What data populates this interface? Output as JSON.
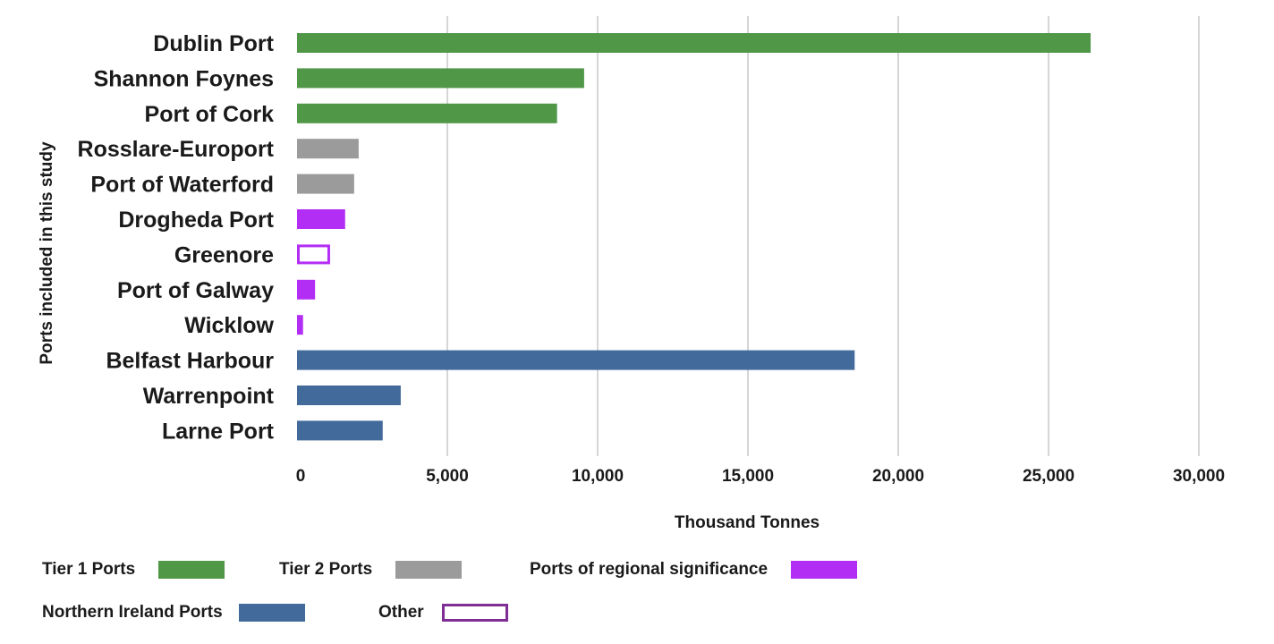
{
  "chart_data": {
    "type": "bar",
    "orientation": "horizontal",
    "xlabel": "Thousand Tonnes",
    "ylabel": "Ports included in this study",
    "xlim": [
      0,
      30000
    ],
    "x_ticks": [
      0,
      5000,
      10000,
      15000,
      20000,
      25000,
      30000
    ],
    "x_tick_labels": [
      "0",
      "5,000",
      "10,000",
      "15,000",
      "20,000",
      "25,000",
      "30,000"
    ],
    "grid": "vertical",
    "legend_position": "bottom",
    "categories": [
      "Dublin Port",
      "Shannon Foynes",
      "Port of Cork",
      "Rosslare-Europort",
      "Port of Waterford",
      "Drogheda Port",
      "Greenore",
      "Port of Galway",
      "Wicklow",
      "Belfast Harbour",
      "Warrenpoint",
      "Larne Port"
    ],
    "values": [
      26400,
      9550,
      8650,
      2050,
      1900,
      1600,
      1100,
      600,
      200,
      18550,
      3450,
      2850
    ],
    "groups": [
      "Tier 1 Ports",
      "Tier 1 Ports",
      "Tier 1 Ports",
      "Tier 2 Ports",
      "Tier 2 Ports",
      "Ports of regional significance",
      "Other",
      "Ports of regional significance",
      "Ports of regional significance",
      "Northern Ireland Ports",
      "Northern Ireland Ports",
      "Northern Ireland Ports"
    ],
    "legend": [
      {
        "name": "Tier 1 Ports",
        "color": "#509748",
        "style": "filled"
      },
      {
        "name": "Tier 2 Ports",
        "color": "#9b9b9b",
        "style": "filled"
      },
      {
        "name": "Ports of regional significance",
        "color": "#b32ef5",
        "style": "filled"
      },
      {
        "name": "Northern Ireland Ports",
        "color": "#426a9b",
        "style": "filled"
      },
      {
        "name": "Other",
        "color": "#7e2e94",
        "style": "outline"
      }
    ],
    "outline_color_in_plot": "#b32ef5"
  }
}
